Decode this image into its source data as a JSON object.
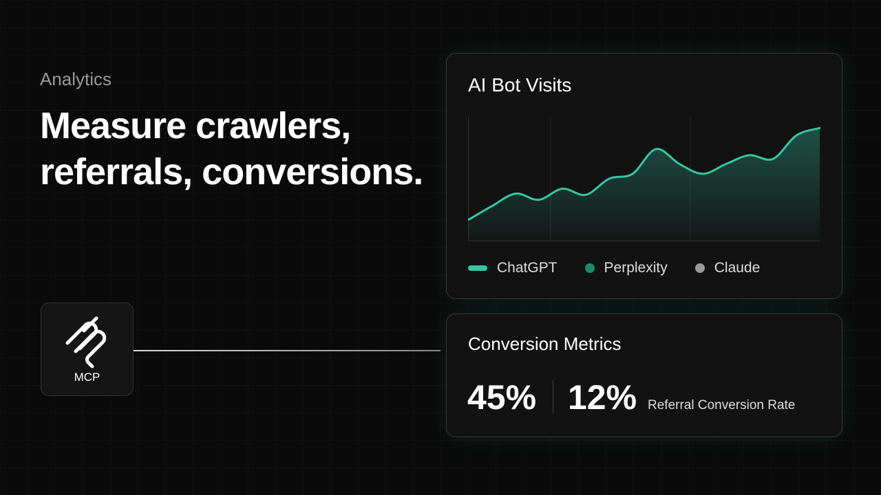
{
  "header": {
    "eyebrow": "Analytics",
    "title_lines": [
      "Measure crawlers,",
      "referrals, conversions."
    ]
  },
  "mcp": {
    "label": "MCP"
  },
  "chart_data": {
    "type": "area",
    "title": "AI Bot Visits",
    "categories": [
      null,
      null,
      null,
      null,
      null,
      null,
      null,
      null,
      null,
      null,
      null,
      null,
      null,
      null,
      null,
      null
    ],
    "series": [
      {
        "name": "ChatGPT",
        "color": "#34c7a5",
        "values": [
          17,
          28,
          38,
          33,
          42,
          37,
          50,
          54,
          74,
          62,
          54,
          62,
          69,
          66,
          85,
          91
        ]
      },
      {
        "name": "Perplexity",
        "color": "#1f8a70",
        "values": [
          null,
          null,
          null,
          null,
          null,
          null,
          null,
          null,
          null,
          null,
          null,
          null,
          null,
          null,
          null,
          null
        ]
      },
      {
        "name": "Claude",
        "color": "#9a9a9a",
        "values": [
          null,
          null,
          null,
          null,
          null,
          null,
          null,
          null,
          null,
          null,
          null,
          null,
          null,
          null,
          null,
          null
        ]
      }
    ],
    "ylim": [
      0,
      100
    ]
  },
  "metrics": {
    "title": "Conversion Metrics",
    "items": [
      "45%",
      "12%"
    ],
    "caption": "Referral Conversion Rate"
  }
}
